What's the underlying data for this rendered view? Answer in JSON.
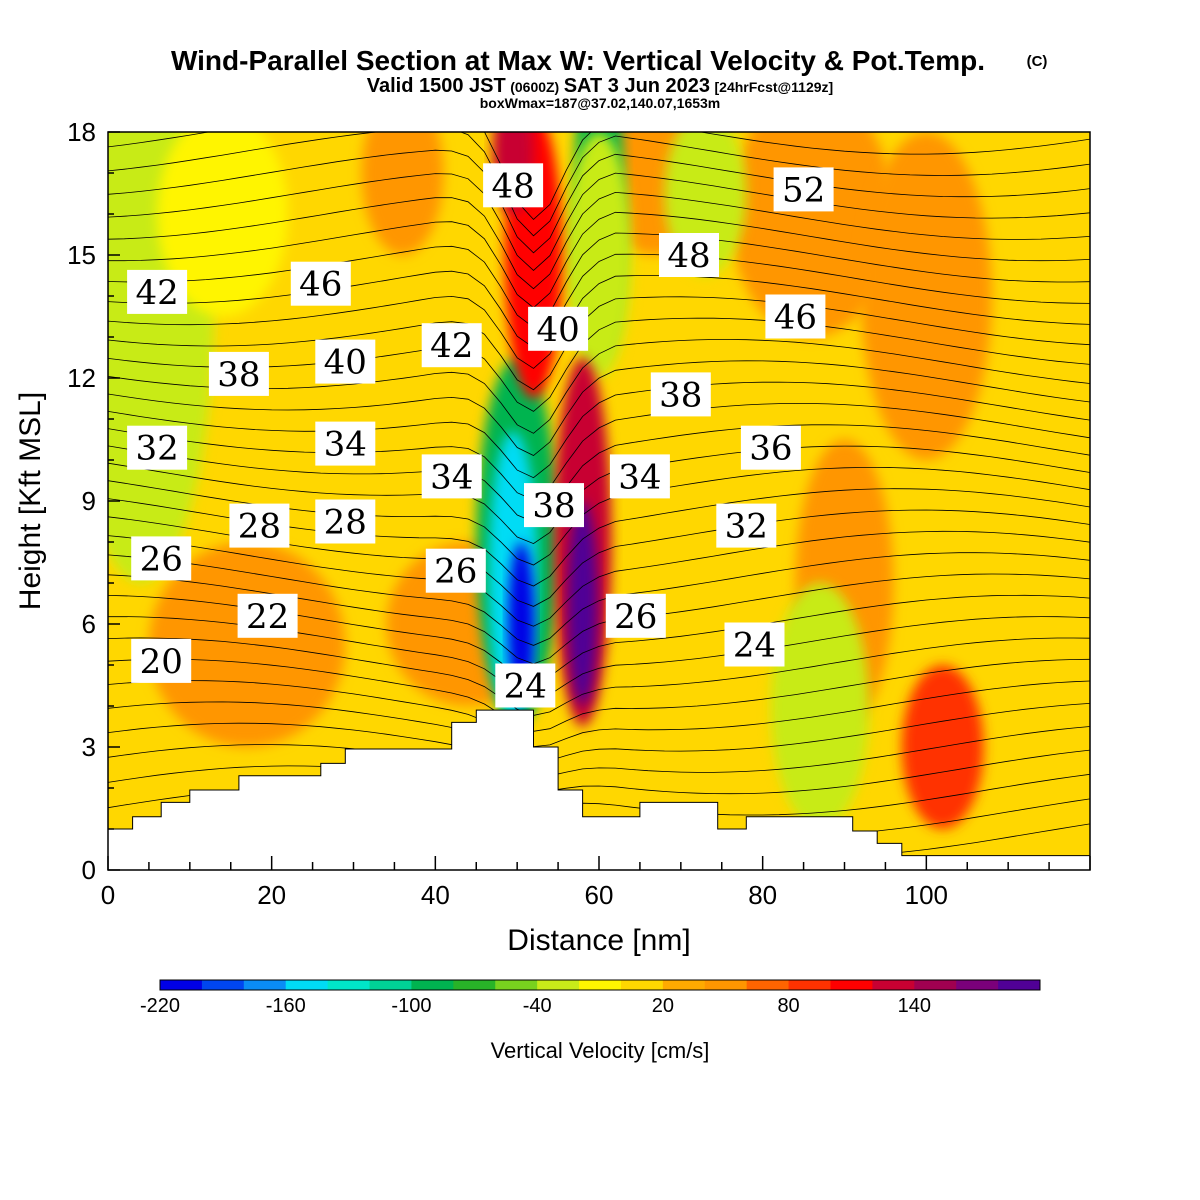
{
  "header": {
    "title": "Wind-Parallel Section at Max W: Vertical Velocity & Pot.Temp.",
    "title_mark": "(C)",
    "valid_prefix": "Valid 1500 JST",
    "valid_utc": "(0600Z)",
    "valid_date": "SAT 3 Jun 2023",
    "forecast": "[24hrFcst@1129z]",
    "box_info": "boxWmax=187@37.02,140.07,1653m"
  },
  "chart_data": {
    "type": "heatmap",
    "xlabel": "Distance [nm]",
    "ylabel": "Height [Kft MSL]",
    "xlim": [
      0,
      120
    ],
    "ylim": [
      0,
      18
    ],
    "x_ticks": [
      0,
      20,
      40,
      60,
      80,
      100
    ],
    "y_ticks": [
      0,
      3,
      6,
      9,
      12,
      15,
      18
    ],
    "grid": false,
    "fill_field": "Vertical Velocity",
    "contour_field": "Potential Temperature",
    "colorbar": {
      "title": "Vertical Velocity [cm/s]",
      "labels": [
        "-220",
        "-160",
        "-100",
        "-40",
        "20",
        "80",
        "140"
      ],
      "label_values": [
        -220,
        -160,
        -100,
        -40,
        20,
        80,
        140
      ],
      "levels": [
        -220,
        -200,
        -180,
        -160,
        -140,
        -120,
        -100,
        -80,
        -60,
        -40,
        -20,
        0,
        20,
        40,
        60,
        80,
        100,
        120,
        140,
        160,
        180
      ],
      "colors": [
        "#0000e6",
        "#0046f0",
        "#0a8cf5",
        "#00dcf5",
        "#00e6c8",
        "#00d296",
        "#00b450",
        "#28b428",
        "#78d21e",
        "#c8eb19",
        "#fff500",
        "#ffd700",
        "#ffaa00",
        "#ff9600",
        "#ff6400",
        "#ff3200",
        "#ff0000",
        "#c80032",
        "#a00050",
        "#7a007a",
        "#500096"
      ]
    },
    "updraft_max_cm_s": 187,
    "contour_labels": [
      {
        "text": "42",
        "x": 6,
        "y": 14.1
      },
      {
        "text": "46",
        "x": 26,
        "y": 14.3
      },
      {
        "text": "48",
        "x": 49.5,
        "y": 16.7
      },
      {
        "text": "52",
        "x": 85,
        "y": 16.6
      },
      {
        "text": "48",
        "x": 71,
        "y": 15.0
      },
      {
        "text": "46",
        "x": 84,
        "y": 13.5
      },
      {
        "text": "42",
        "x": 42,
        "y": 12.8
      },
      {
        "text": "40",
        "x": 55,
        "y": 13.2
      },
      {
        "text": "38",
        "x": 16,
        "y": 12.1
      },
      {
        "text": "40",
        "x": 29,
        "y": 12.4
      },
      {
        "text": "38",
        "x": 70,
        "y": 11.6
      },
      {
        "text": "36",
        "x": 81,
        "y": 10.3
      },
      {
        "text": "32",
        "x": 6,
        "y": 10.3
      },
      {
        "text": "34",
        "x": 29,
        "y": 10.4
      },
      {
        "text": "34",
        "x": 42,
        "y": 9.6
      },
      {
        "text": "34",
        "x": 65,
        "y": 9.6
      },
      {
        "text": "38",
        "x": 54.5,
        "y": 8.9
      },
      {
        "text": "32",
        "x": 78,
        "y": 8.4
      },
      {
        "text": "28",
        "x": 18.5,
        "y": 8.4
      },
      {
        "text": "28",
        "x": 29,
        "y": 8.5
      },
      {
        "text": "26",
        "x": 6.5,
        "y": 7.6
      },
      {
        "text": "26",
        "x": 42.5,
        "y": 7.3
      },
      {
        "text": "22",
        "x": 19.5,
        "y": 6.2
      },
      {
        "text": "26",
        "x": 64.5,
        "y": 6.2
      },
      {
        "text": "24",
        "x": 79,
        "y": 5.5
      },
      {
        "text": "20",
        "x": 6.5,
        "y": 5.1
      },
      {
        "text": "24",
        "x": 51,
        "y": 4.5
      }
    ],
    "terrain": {
      "x": [
        0,
        3,
        3,
        6.5,
        6.5,
        10,
        10,
        16,
        16,
        26,
        26,
        29,
        29,
        42,
        42,
        45,
        45,
        52,
        52,
        55,
        55,
        58,
        58,
        65,
        65,
        74.5,
        74.5,
        78,
        78,
        91,
        91,
        94,
        94,
        97,
        97,
        120
      ],
      "y": [
        1.0,
        1.0,
        1.3,
        1.3,
        1.65,
        1.65,
        1.95,
        1.95,
        2.3,
        2.3,
        2.6,
        2.6,
        2.95,
        2.95,
        3.6,
        3.6,
        3.9,
        3.9,
        3.0,
        3.0,
        1.95,
        1.95,
        1.3,
        1.3,
        1.65,
        1.65,
        1.0,
        1.0,
        1.3,
        1.3,
        0.95,
        0.95,
        0.65,
        0.65,
        0.35,
        0.35
      ]
    }
  }
}
